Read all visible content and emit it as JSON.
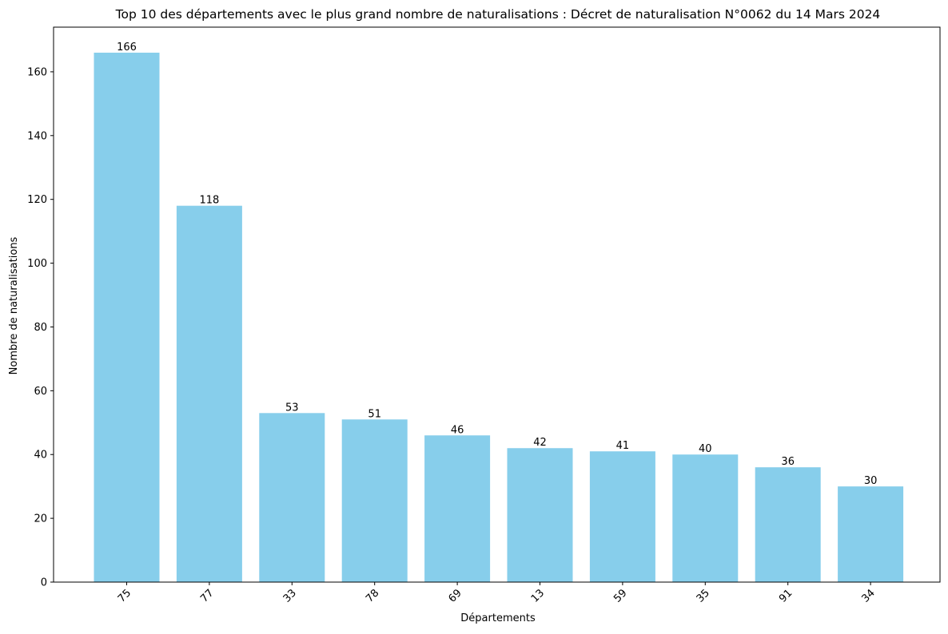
{
  "chart_data": {
    "type": "bar",
    "title": "Top 10 des départements avec le plus grand nombre de naturalisations : Décret de naturalisation N°0062 du 14 Mars 2024",
    "xlabel": "Départements",
    "ylabel": "Nombre de naturalisations",
    "categories": [
      "75",
      "77",
      "33",
      "78",
      "69",
      "13",
      "59",
      "35",
      "91",
      "34"
    ],
    "values": [
      166,
      118,
      53,
      51,
      46,
      42,
      41,
      40,
      36,
      30
    ],
    "ylim": [
      0,
      174
    ],
    "yticks": [
      0,
      20,
      40,
      60,
      80,
      100,
      120,
      140,
      160
    ],
    "bar_color": "#87ceeb",
    "grid": false,
    "legend": "none",
    "x_tick_rotation_deg": 45,
    "data_labels": true
  }
}
